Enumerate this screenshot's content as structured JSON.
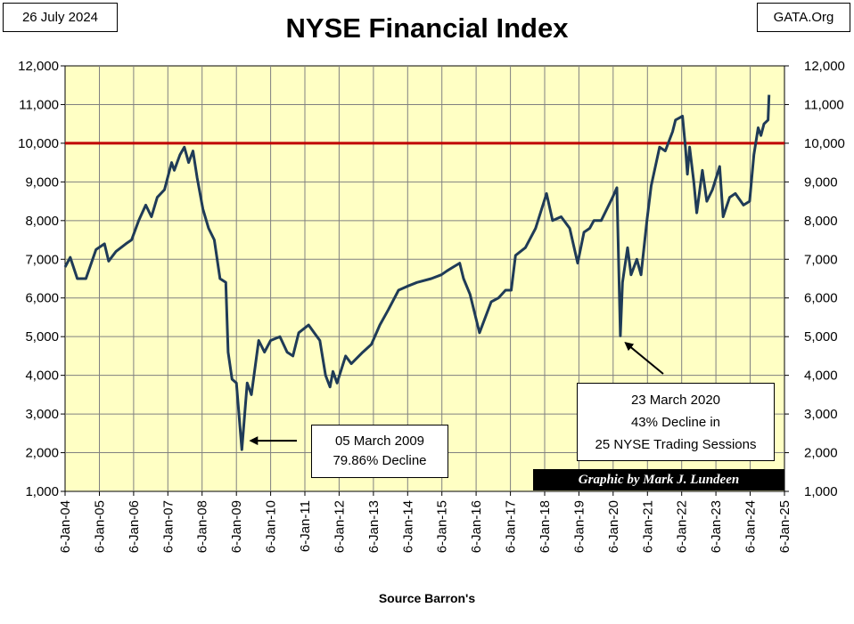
{
  "header": {
    "date": "26 July 2024",
    "source": "GATA.Org"
  },
  "footer": {
    "credit": "Graphic by Mark J. Lundeen",
    "xlabel": "Source Barron's"
  },
  "colors": {
    "plot_bg": "#ffffc4",
    "line": "#1f3b57",
    "reference": "#c00000",
    "grid": "#808080"
  },
  "annotations": [
    {
      "lines": [
        "05 March 2009",
        "79.86%  Decline"
      ],
      "target": [
        "2009-03-05",
        2080
      ]
    },
    {
      "lines": [
        "23 March 2020",
        "43%  Decline in",
        "25 NYSE Trading Sessions"
      ],
      "target": [
        "2020-03-23",
        5020
      ]
    }
  ],
  "chart_data": {
    "type": "line",
    "title": "NYSE Financial Index",
    "xlabel": "Source Barron's",
    "ylabel": "",
    "ylim": [
      1000,
      12000
    ],
    "yticks": [
      "1,000",
      "2,000",
      "3,000",
      "4,000",
      "5,000",
      "6,000",
      "7,000",
      "8,000",
      "9,000",
      "10,000",
      "11,000",
      "12,000"
    ],
    "xticks": [
      "6-Jan-04",
      "6-Jan-05",
      "6-Jan-06",
      "6-Jan-07",
      "6-Jan-08",
      "6-Jan-09",
      "6-Jan-10",
      "6-Jan-11",
      "6-Jan-12",
      "6-Jan-13",
      "6-Jan-14",
      "6-Jan-15",
      "6-Jan-16",
      "6-Jan-17",
      "6-Jan-18",
      "6-Jan-19",
      "6-Jan-20",
      "6-Jan-21",
      "6-Jan-22",
      "6-Jan-23",
      "6-Jan-24",
      "6-Jan-25"
    ],
    "xlim": [
      "2004-01-06",
      "2025-01-06"
    ],
    "grid": true,
    "reference_lines": [
      {
        "y": 10000
      }
    ],
    "series": [
      {
        "x": [
          "2004-01-06",
          "2004-03-01",
          "2004-05-15",
          "2004-08-15",
          "2004-12-01",
          "2005-03-01",
          "2005-04-15",
          "2005-07-01",
          "2005-10-15",
          "2005-12-15",
          "2006-03-01",
          "2006-05-15",
          "2006-07-15",
          "2006-09-15",
          "2006-12-01",
          "2007-02-15",
          "2007-03-15",
          "2007-05-15",
          "2007-07-01",
          "2007-08-15",
          "2007-10-01",
          "2007-11-15",
          "2008-01-15",
          "2008-03-15",
          "2008-05-15",
          "2008-07-15",
          "2008-09-15",
          "2008-10-10",
          "2008-11-20",
          "2009-01-06",
          "2009-03-05",
          "2009-05-01",
          "2009-06-15",
          "2009-09-01",
          "2009-11-01",
          "2010-01-06",
          "2010-04-15",
          "2010-07-01",
          "2010-09-01",
          "2010-11-01",
          "2011-02-15",
          "2011-04-15",
          "2011-06-15",
          "2011-08-15",
          "2011-10-01",
          "2011-11-01",
          "2011-12-15",
          "2012-03-15",
          "2012-05-15",
          "2012-09-15",
          "2012-12-15",
          "2013-03-15",
          "2013-06-15",
          "2013-10-01",
          "2013-12-31",
          "2014-04-15",
          "2014-09-15",
          "2014-12-31",
          "2015-03-01",
          "2015-07-15",
          "2015-08-25",
          "2015-11-01",
          "2016-02-11",
          "2016-06-15",
          "2016-09-01",
          "2016-11-15",
          "2017-01-15",
          "2017-03-01",
          "2017-06-15",
          "2017-10-01",
          "2018-01-26",
          "2018-04-01",
          "2018-07-01",
          "2018-09-30",
          "2018-12-24",
          "2019-03-01",
          "2019-05-01",
          "2019-06-15",
          "2019-09-01",
          "2019-12-31",
          "2020-02-15",
          "2020-03-23",
          "2020-04-15",
          "2020-06-08",
          "2020-07-15",
          "2020-09-15",
          "2020-10-30",
          "2020-12-31",
          "2021-02-15",
          "2021-05-15",
          "2021-07-15",
          "2021-10-01",
          "2021-11-01",
          "2022-01-15",
          "2022-02-15",
          "2022-03-08",
          "2022-04-01",
          "2022-05-15",
          "2022-06-16",
          "2022-08-15",
          "2022-10-01",
          "2022-11-30",
          "2023-02-15",
          "2023-03-24",
          "2023-06-01",
          "2023-08-01",
          "2023-10-27",
          "2023-12-31",
          "2024-02-15",
          "2024-04-01",
          "2024-04-30",
          "2024-06-01",
          "2024-07-15",
          "2024-07-26"
        ],
        "values": [
          6800,
          7050,
          6500,
          6500,
          7250,
          7400,
          6950,
          7200,
          7400,
          7500,
          8000,
          8400,
          8100,
          8600,
          8800,
          9500,
          9300,
          9700,
          9900,
          9500,
          9800,
          9100,
          8300,
          7800,
          7500,
          6500,
          6400,
          4600,
          3900,
          3800,
          2080,
          3800,
          3500,
          4900,
          4600,
          4900,
          5000,
          4600,
          4500,
          5100,
          5300,
          5100,
          4900,
          4000,
          3700,
          4100,
          3800,
          4500,
          4300,
          4600,
          4800,
          5300,
          5700,
          6200,
          6300,
          6400,
          6500,
          6600,
          6700,
          6900,
          6500,
          6100,
          5100,
          5900,
          6000,
          6200,
          6200,
          7100,
          7300,
          7800,
          8700,
          8000,
          8100,
          7800,
          6900,
          7700,
          7800,
          8000,
          8000,
          8600,
          8850,
          5020,
          6400,
          7300,
          6600,
          7000,
          6600,
          8000,
          8900,
          9900,
          9800,
          10300,
          10600,
          10700,
          9900,
          9200,
          9900,
          9000,
          8200,
          9300,
          8500,
          8800,
          9400,
          8100,
          8600,
          8700,
          8400,
          8500,
          9700,
          10400,
          10200,
          10500,
          10600,
          11250
        ]
      }
    ]
  }
}
